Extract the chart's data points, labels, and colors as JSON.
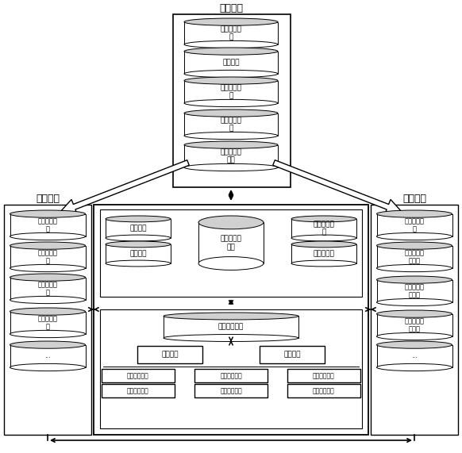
{
  "title": "调度系统",
  "bg_color": "#ffffff",
  "dispatch_items": [
    "基础信息管\n理",
    "设备管理",
    "电网运行监\n控",
    "继电保护管\n理",
    "调度自动化\n应用"
  ],
  "production_title": "生产系统",
  "production_items": [
    "基础信息管\n理",
    "电网资源管\n理",
    "停电通知管\n理",
    "设备台账管\n理",
    "..."
  ],
  "marketing_title": "营销系统",
  "marketing_items": [
    "停电信息管\n理",
    "电网薄弱环\n境管理",
    "用户电量信\n息管理",
    "故障报修抢\n修管理",
    "..."
  ],
  "cockpit_top_left": [
    "精益调度",
    "故障管理"
  ],
  "cockpit_top_mid": "升压站运行\n监视",
  "cockpit_top_right": [
    "线路运行监\n视",
    "低电压管理"
  ],
  "unified_label": "统一访问接口",
  "data_exchange": "数据校验",
  "unified_model": "统一模型",
  "db_row1": [
    "配网运行信息",
    "配网模型信息",
    "设备台账信息"
  ],
  "db_row2": [
    "用户用电信息",
    "负荷曲线信息",
    "用户档案信息"
  ],
  "figw": 5.82,
  "figh": 5.71,
  "dpi": 100
}
